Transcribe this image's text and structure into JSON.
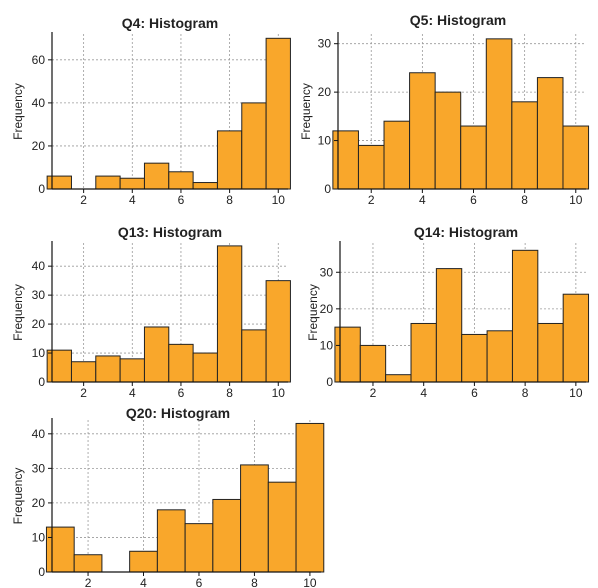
{
  "colors": {
    "bar_fill": "#F9A72B",
    "bar_stroke": "#222222",
    "grid": "#9a9a9a",
    "axis": "#111111"
  },
  "chart_data": [
    {
      "type": "bar",
      "title": "Q4: Histogram",
      "ylabel": "Frequency",
      "xlabel": "",
      "x_range": [
        0.7,
        10.4
      ],
      "ylim": [
        0,
        72
      ],
      "xticks": [
        2,
        4,
        6,
        8,
        10
      ],
      "yticks": [
        0,
        20,
        40,
        60
      ],
      "bins": [
        1,
        2,
        3,
        4,
        5,
        6,
        7,
        8,
        9,
        10
      ],
      "values": [
        6,
        0,
        6,
        5,
        12,
        8,
        3,
        27,
        40,
        70
      ],
      "grid": true,
      "legend": "none"
    },
    {
      "type": "bar",
      "title": "Q5: Histogram",
      "ylabel": "Frequency",
      "xlabel": "",
      "x_range": [
        0.7,
        10.4
      ],
      "ylim": [
        0,
        32
      ],
      "xticks": [
        2,
        4,
        6,
        8,
        10
      ],
      "yticks": [
        0,
        10,
        20,
        30
      ],
      "bins": [
        1,
        2,
        3,
        4,
        5,
        6,
        7,
        8,
        9,
        10
      ],
      "values": [
        12,
        9,
        14,
        24,
        20,
        13,
        31,
        18,
        23,
        13
      ],
      "grid": true,
      "legend": "none"
    },
    {
      "type": "bar",
      "title": "Q13: Histogram",
      "ylabel": "Frequency",
      "xlabel": "",
      "x_range": [
        0.7,
        10.4
      ],
      "ylim": [
        0,
        48
      ],
      "xticks": [
        2,
        4,
        6,
        8,
        10
      ],
      "yticks": [
        0,
        10,
        20,
        30,
        40
      ],
      "bins": [
        1,
        2,
        3,
        4,
        5,
        6,
        7,
        8,
        9,
        10
      ],
      "values": [
        11,
        7,
        9,
        8,
        19,
        13,
        10,
        47,
        18,
        35
      ],
      "grid": true,
      "legend": "none"
    },
    {
      "type": "bar",
      "title": "Q14: Histogram",
      "ylabel": "Frequency",
      "xlabel": "",
      "x_range": [
        0.7,
        10.4
      ],
      "ylim": [
        0,
        38
      ],
      "xticks": [
        2,
        4,
        6,
        8,
        10
      ],
      "yticks": [
        0,
        10,
        20,
        30
      ],
      "bins": [
        1,
        2,
        3,
        4,
        5,
        6,
        7,
        8,
        9,
        10
      ],
      "values": [
        15,
        10,
        2,
        16,
        31,
        13,
        14,
        36,
        16,
        24
      ],
      "grid": true,
      "legend": "none"
    },
    {
      "type": "bar",
      "title": "Q20: Histogram",
      "ylabel": "Frequency",
      "xlabel": "",
      "x_range": [
        0.7,
        10.4
      ],
      "ylim": [
        0,
        44
      ],
      "xticks": [
        2,
        4,
        6,
        8,
        10
      ],
      "yticks": [
        0,
        10,
        20,
        30,
        40
      ],
      "bins": [
        1,
        2,
        3,
        4,
        5,
        6,
        7,
        8,
        9,
        10
      ],
      "values": [
        13,
        5,
        0,
        6,
        18,
        14,
        21,
        31,
        26,
        43
      ],
      "grid": true,
      "legend": "none"
    }
  ]
}
